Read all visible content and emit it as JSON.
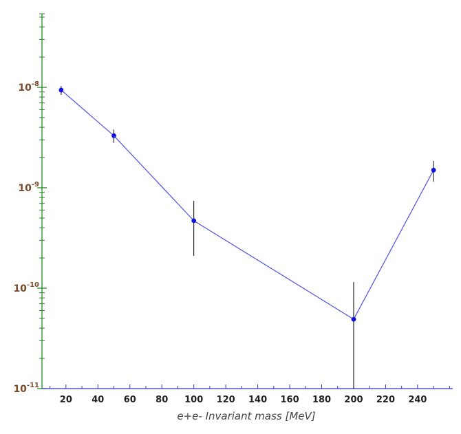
{
  "chart_data": {
    "type": "line",
    "title": "",
    "xlabel": "e+e- Invariant mass   [MeV]",
    "ylabel": "",
    "yscale": "log",
    "xlim": [
      5,
      262
    ],
    "ylim": [
      1e-11,
      6e-08
    ],
    "x_ticks": [
      20,
      40,
      60,
      80,
      100,
      120,
      140,
      160,
      180,
      200,
      220,
      240
    ],
    "y_ticks": [
      {
        "value": 1e-08,
        "base": "10",
        "exp": "-8"
      },
      {
        "value": 1e-09,
        "base": "10",
        "exp": "-9"
      },
      {
        "value": 1e-10,
        "base": "10",
        "exp": "-10"
      },
      {
        "value": 1e-11,
        "base": "10",
        "exp": "-11"
      }
    ],
    "grid": false,
    "legend": "none",
    "series": [
      {
        "x": [
          17,
          50,
          100,
          200,
          250
        ],
        "y": [
          9.4e-09,
          3.3e-09,
          4.7e-10,
          4.9e-11,
          1.5e-09
        ],
        "yerr_low": [
          8.4e-09,
          2.8e-09,
          2.1e-10,
          1e-11,
          1.15e-09
        ],
        "yerr_high": [
          1.03e-08,
          3.8e-09,
          7.4e-10,
          1.15e-10,
          1.85e-09
        ],
        "line_color": "#5a5ae0",
        "marker_color": "#1010e0"
      }
    ],
    "colors": {
      "x_axis": "#3333cc",
      "y_axis": "#228822",
      "error_bar": "#000000",
      "y_tick_label": "#7a4a2a"
    }
  }
}
